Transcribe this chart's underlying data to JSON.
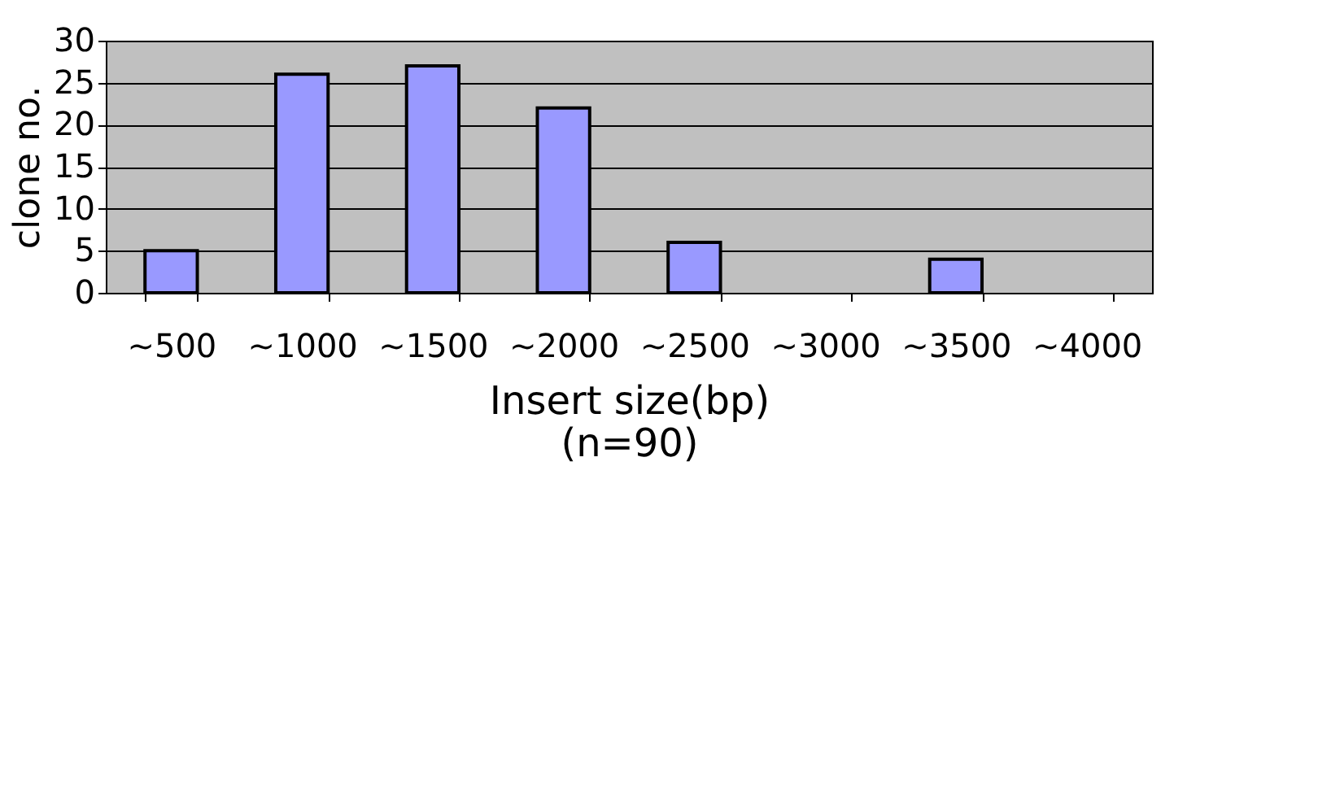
{
  "chart_data": {
    "type": "bar",
    "xlabel": "Insert size(bp)",
    "ylabel": "clone no.",
    "annotations": [
      "(n=90)"
    ],
    "categories": [
      "~500",
      "~1000",
      "~1500",
      "~2000",
      "~2500",
      "~3000",
      "~3500",
      "~4000"
    ],
    "values": [
      5,
      26,
      27,
      22,
      6,
      0,
      4,
      0
    ],
    "color": "#9999ff",
    "ylim": [
      0,
      30
    ],
    "yticks": [
      0,
      5,
      10,
      15,
      20,
      25,
      30
    ],
    "grid": "y"
  }
}
